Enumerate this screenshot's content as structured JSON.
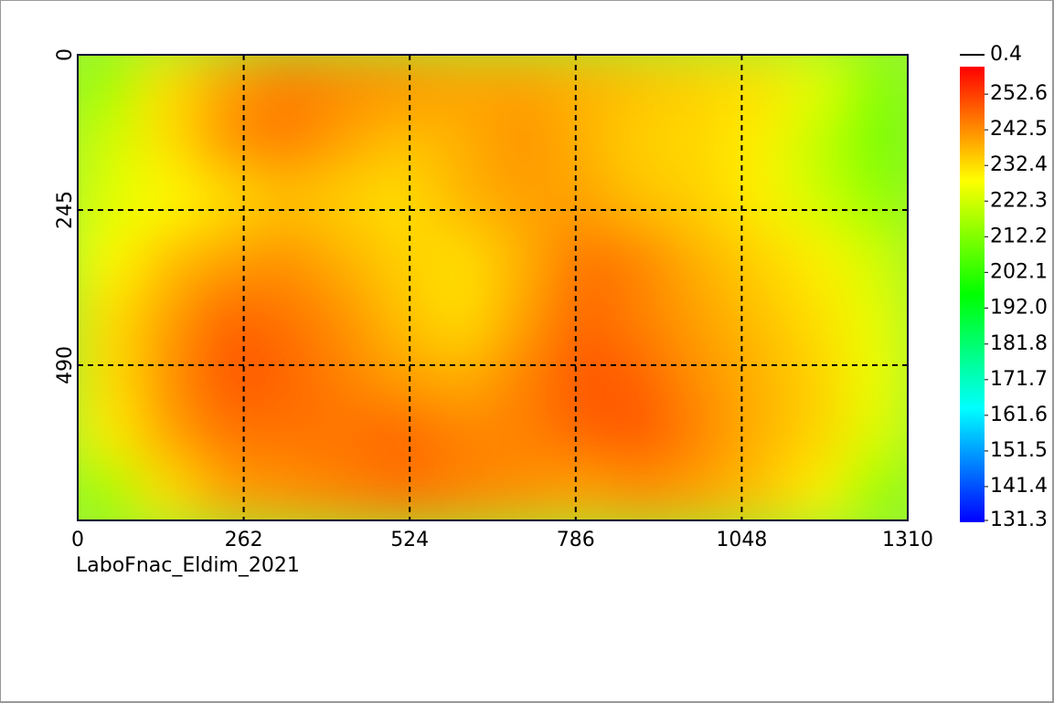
{
  "chart_data": {
    "type": "heatmap",
    "label": "LaboFnac_Eldim_2021",
    "xlim": [
      0,
      1310
    ],
    "xticks": [
      0,
      262,
      524,
      786,
      1048,
      1310
    ],
    "ylim": [
      0,
      735
    ],
    "yticks": [
      0,
      245,
      490
    ],
    "y_inverted": true,
    "grid": true,
    "colors": [
      "#0000ff",
      "#00ffff",
      "#00ff00",
      "#ffff00",
      "#ff0000"
    ],
    "clim": [
      131.3,
      260.4
    ],
    "cticks": [
      252.6,
      242.5,
      232.4,
      222.3,
      212.2,
      202.1,
      {
        "value": 192,
        "label": "192.0"
      },
      181.8,
      171.7,
      161.6,
      151.5,
      141.4,
      131.3
    ],
    "contour_level": 0.4,
    "z": [
      [
        215,
        232,
        240,
        245,
        243,
        242,
        240,
        240,
        238,
        236,
        234,
        232,
        225,
        212
      ],
      [
        222,
        232,
        242,
        245,
        240,
        236,
        238,
        242,
        238,
        234,
        233,
        230,
        220,
        210
      ],
      [
        224,
        228,
        232,
        236,
        234,
        232,
        238,
        240,
        240,
        236,
        234,
        230,
        222,
        214
      ],
      [
        228,
        236,
        240,
        242,
        238,
        234,
        232,
        238,
        246,
        244,
        238,
        234,
        230,
        222
      ],
      [
        232,
        240,
        248,
        246,
        242,
        236,
        232,
        240,
        248,
        244,
        240,
        236,
        232,
        225
      ],
      [
        232,
        242,
        250,
        248,
        244,
        240,
        238,
        244,
        250,
        248,
        242,
        238,
        234,
        226
      ],
      [
        230,
        240,
        246,
        246,
        246,
        248,
        244,
        244,
        248,
        250,
        244,
        238,
        234,
        224
      ],
      [
        215,
        232,
        240,
        242,
        244,
        246,
        244,
        242,
        240,
        242,
        240,
        236,
        230,
        214
      ]
    ]
  }
}
